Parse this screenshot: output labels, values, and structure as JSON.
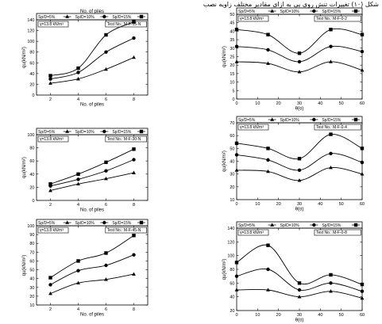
{
  "caption": "شکل (۱۰) تغییرات تنش روی پی به ازای مقادیر مختلف زاویه نصب",
  "chart_data": [
    {
      "type": "line",
      "top_label": "No. of piles",
      "series_legend": [
        "Sp/D=5%",
        "Sp/D=10%",
        "Sp/D=15%"
      ],
      "gamma_label": "γ=13.8 kN/m³",
      "test_label": "Test No.: M-F-15-N",
      "xlabel": "No. of piles",
      "ylabel": "qu(kN/m²)",
      "x": [
        2,
        4,
        6,
        8
      ],
      "xlim": [
        1,
        9
      ],
      "xticks": [
        2,
        4,
        6,
        8
      ],
      "ylim": [
        0,
        140
      ],
      "yticks": [
        0,
        20,
        40,
        60,
        80,
        100,
        120,
        140
      ],
      "series": [
        {
          "values": [
            22,
            30,
            48,
            70
          ],
          "marker": "triangle"
        },
        {
          "values": [
            30,
            42,
            80,
            106
          ],
          "marker": "circle"
        },
        {
          "values": [
            36,
            50,
            112,
            136
          ],
          "marker": "square"
        }
      ]
    },
    {
      "type": "line",
      "series_legend": [
        "Sp/D=5%",
        "Sp/D=10%",
        "Sp/D=15%"
      ],
      "gamma_label": "γ=13.8 kN/m³",
      "test_label": "Test No.: M-F-30-N",
      "xlabel": "No. of piles",
      "ylabel": "qu(kN/m²)",
      "x": [
        2,
        4,
        6,
        8
      ],
      "xlim": [
        1,
        9
      ],
      "xticks": [
        2,
        4,
        6,
        8
      ],
      "ylim": [
        0,
        100
      ],
      "yticks": [
        0,
        20,
        40,
        60,
        80,
        100
      ],
      "series": [
        {
          "values": [
            15,
            25,
            33,
            42
          ],
          "marker": "triangle"
        },
        {
          "values": [
            22,
            32,
            45,
            62
          ],
          "marker": "circle"
        },
        {
          "values": [
            25,
            40,
            58,
            78
          ],
          "marker": "square"
        }
      ]
    },
    {
      "type": "line",
      "series_legend": [
        "Sp/D=5%",
        "Sp/D=10%",
        "Sp/D=15%"
      ],
      "gamma_label": "γ=13.8 kN/m³",
      "test_label": "Test No.: M-F-45-N",
      "xlabel": "No. of piles",
      "ylabel": "qu(kN/m²)",
      "x": [
        2,
        4,
        6,
        8
      ],
      "xlim": [
        1,
        9
      ],
      "xticks": [
        2,
        4,
        6,
        8
      ],
      "ylim": [
        10,
        100
      ],
      "yticks": [
        10,
        20,
        30,
        40,
        50,
        60,
        70,
        80,
        90,
        100
      ],
      "series": [
        {
          "values": [
            23,
            35,
            39,
            45
          ],
          "marker": "triangle"
        },
        {
          "values": [
            33,
            49,
            55,
            67
          ],
          "marker": "circle"
        },
        {
          "values": [
            41,
            60,
            69,
            89
          ],
          "marker": "square"
        }
      ]
    },
    {
      "type": "line",
      "series_legend": [
        "Sp/D=5%",
        "Sp/D=10%",
        "Sp/D=15%"
      ],
      "gamma_label": "γ=13.8 kN/m³",
      "test_label": "Test No.: M-F-0-2",
      "xlabel": "θ(o)",
      "ylabel": "qu(kN/m²)",
      "x": [
        0,
        15,
        30,
        45,
        60
      ],
      "xlim": [
        0,
        60
      ],
      "xticks": [
        0,
        10,
        20,
        30,
        40,
        50,
        60
      ],
      "ylim": [
        0,
        50
      ],
      "yticks": [
        0,
        5,
        10,
        15,
        20,
        25,
        30,
        35,
        40,
        45,
        50
      ],
      "series": [
        {
          "values": [
            22,
            21,
            16,
            22,
            17
          ],
          "marker": "triangle"
        },
        {
          "values": [
            31,
            29,
            22,
            31,
            28
          ],
          "marker": "circle"
        },
        {
          "values": [
            41,
            38,
            27,
            41,
            38
          ],
          "marker": "square"
        }
      ]
    },
    {
      "type": "line",
      "series_legend": [
        "Sp/D=5%",
        "Sp/D=10%",
        "Sp/D=15%"
      ],
      "gamma_label": "γ=13.8 kN/m³",
      "test_label": "Test No.: M-F-0-4",
      "xlabel": "θ(o)",
      "ylabel": "qu(kN/m²)",
      "x": [
        0,
        15,
        30,
        45,
        60
      ],
      "xlim": [
        0,
        60
      ],
      "xticks": [
        0,
        10,
        20,
        30,
        40,
        50,
        60
      ],
      "ylim": [
        10,
        70
      ],
      "yticks": [
        10,
        20,
        30,
        40,
        50,
        60,
        70
      ],
      "series": [
        {
          "values": [
            33,
            32,
            25,
            35,
            30
          ],
          "marker": "triangle"
        },
        {
          "values": [
            45,
            41,
            33,
            46,
            39
          ],
          "marker": "circle"
        },
        {
          "values": [
            54,
            50,
            42,
            61,
            50
          ],
          "marker": "square"
        }
      ]
    },
    {
      "type": "line",
      "series_legend": [
        "Sp/D=5%",
        "Sp/D=10%",
        "Sp/D=15%"
      ],
      "gamma_label": "γ=13.8 kN/m³",
      "test_label": "Test No.: M-F-0-8",
      "xlabel": "θ(o)",
      "ylabel": "qu(kN/m²)",
      "x": [
        0,
        15,
        30,
        45,
        60
      ],
      "xlim": [
        0,
        60
      ],
      "xticks": [
        0,
        10,
        20,
        30,
        40,
        50,
        60
      ],
      "ylim": [
        20,
        140
      ],
      "yticks": [
        20,
        40,
        60,
        80,
        100,
        120,
        140
      ],
      "series": [
        {
          "values": [
            50,
            50,
            40,
            48,
            38
          ],
          "marker": "triangle"
        },
        {
          "values": [
            70,
            80,
            50,
            60,
            48
          ],
          "marker": "circle"
        },
        {
          "values": [
            90,
            115,
            60,
            72,
            58
          ],
          "marker": "square"
        }
      ]
    }
  ]
}
